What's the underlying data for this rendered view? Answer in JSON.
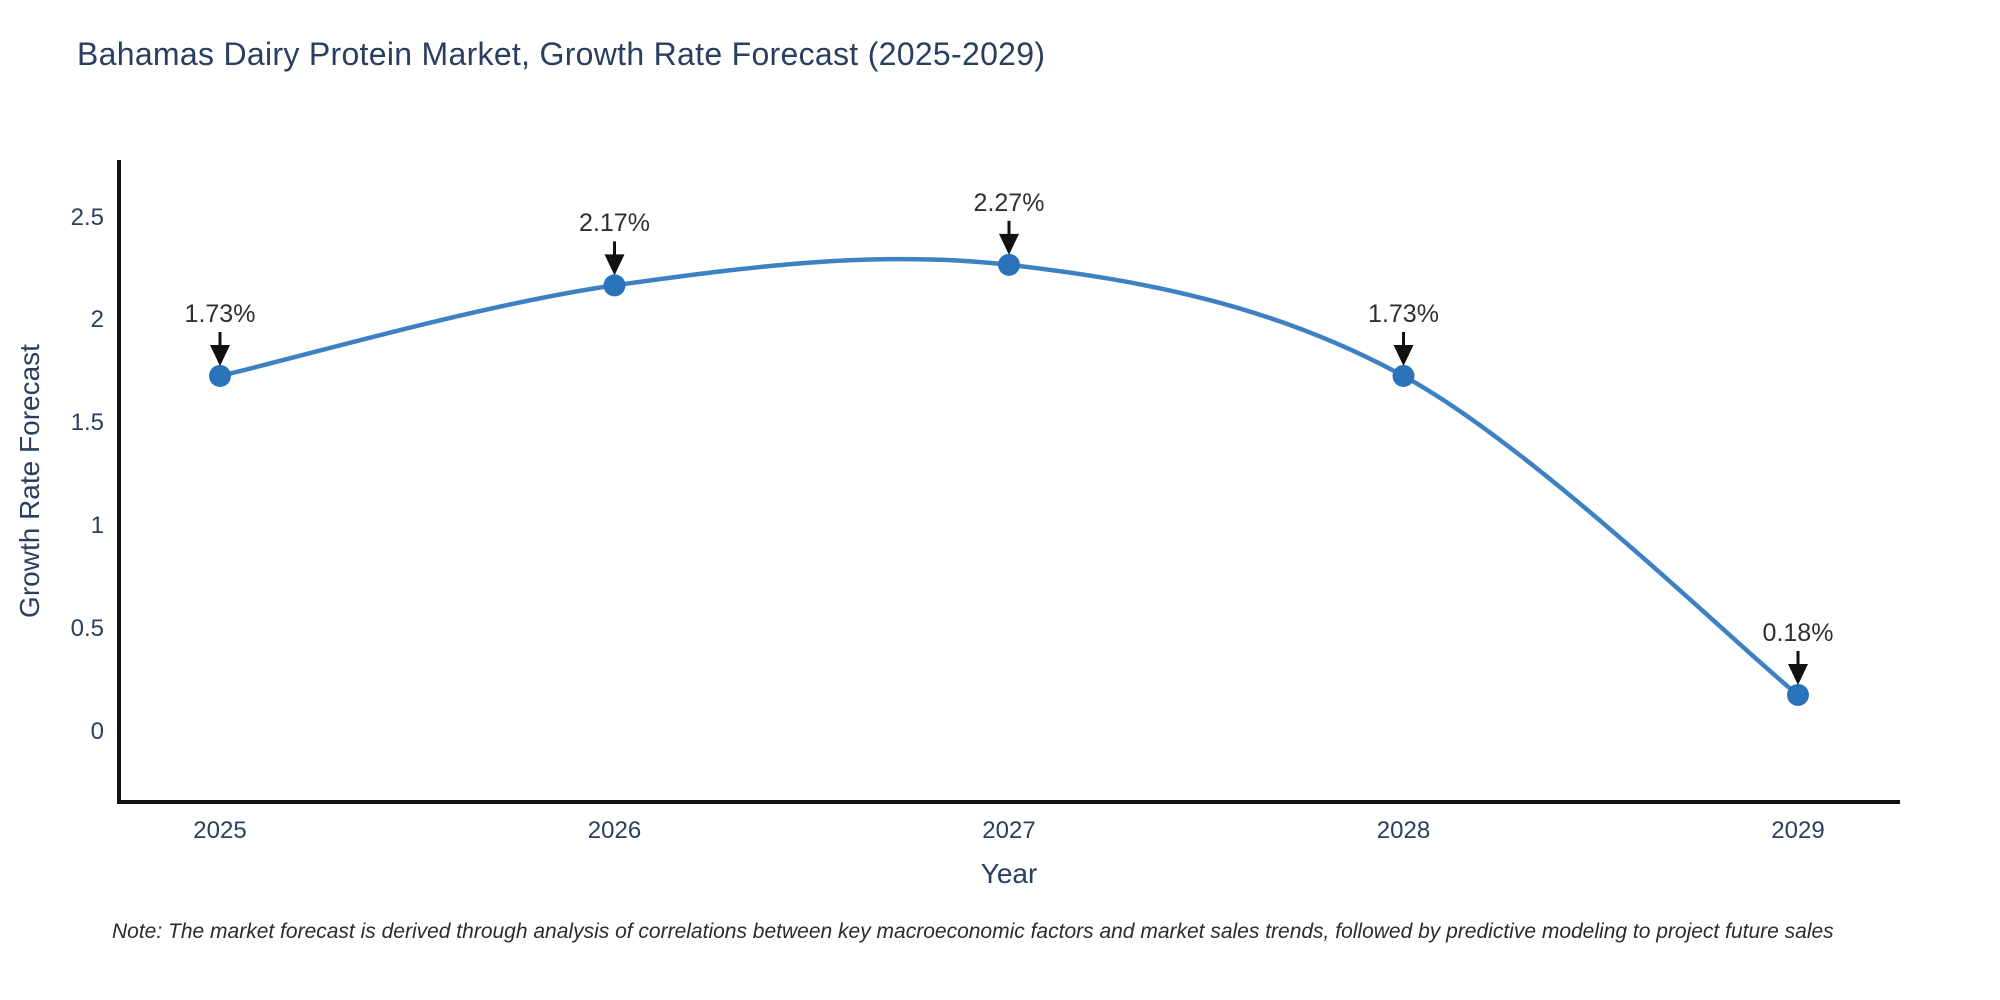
{
  "title": "Bahamas Dairy Protein Market, Growth Rate Forecast (2025-2029)",
  "note": "Note: The market forecast is derived through analysis of correlations between key macroeconomic factors and market sales trends, followed by predictive modeling to project future sales",
  "chart_data": {
    "type": "line",
    "line_shape": "spline",
    "title": "Bahamas Dairy Protein Market, Growth Rate Forecast (2025-2029)",
    "xlabel": "Year",
    "ylabel": "Growth Rate Forecast",
    "categories": [
      "2025",
      "2026",
      "2027",
      "2028",
      "2029"
    ],
    "values": [
      1.73,
      2.17,
      2.27,
      1.73,
      0.18
    ],
    "point_labels": [
      "1.73%",
      "2.17%",
      "2.27%",
      "1.73%",
      "0.18%"
    ],
    "yticks": [
      "0",
      "0.5",
      "1",
      "1.5",
      "2",
      "2.5"
    ],
    "ytick_values": [
      0,
      0.5,
      1,
      1.5,
      2,
      2.5
    ],
    "ylim": [
      -0.34,
      2.78
    ],
    "grid": false,
    "legend": false,
    "colors": {
      "line": "#3e81c2",
      "marker": "#2b73b8",
      "axis": "#111111",
      "arrow": "#111111",
      "title_text": "#2a3f5f",
      "tick_text": "#2a3f5f",
      "annotation_text": "#2f2f2f"
    }
  }
}
